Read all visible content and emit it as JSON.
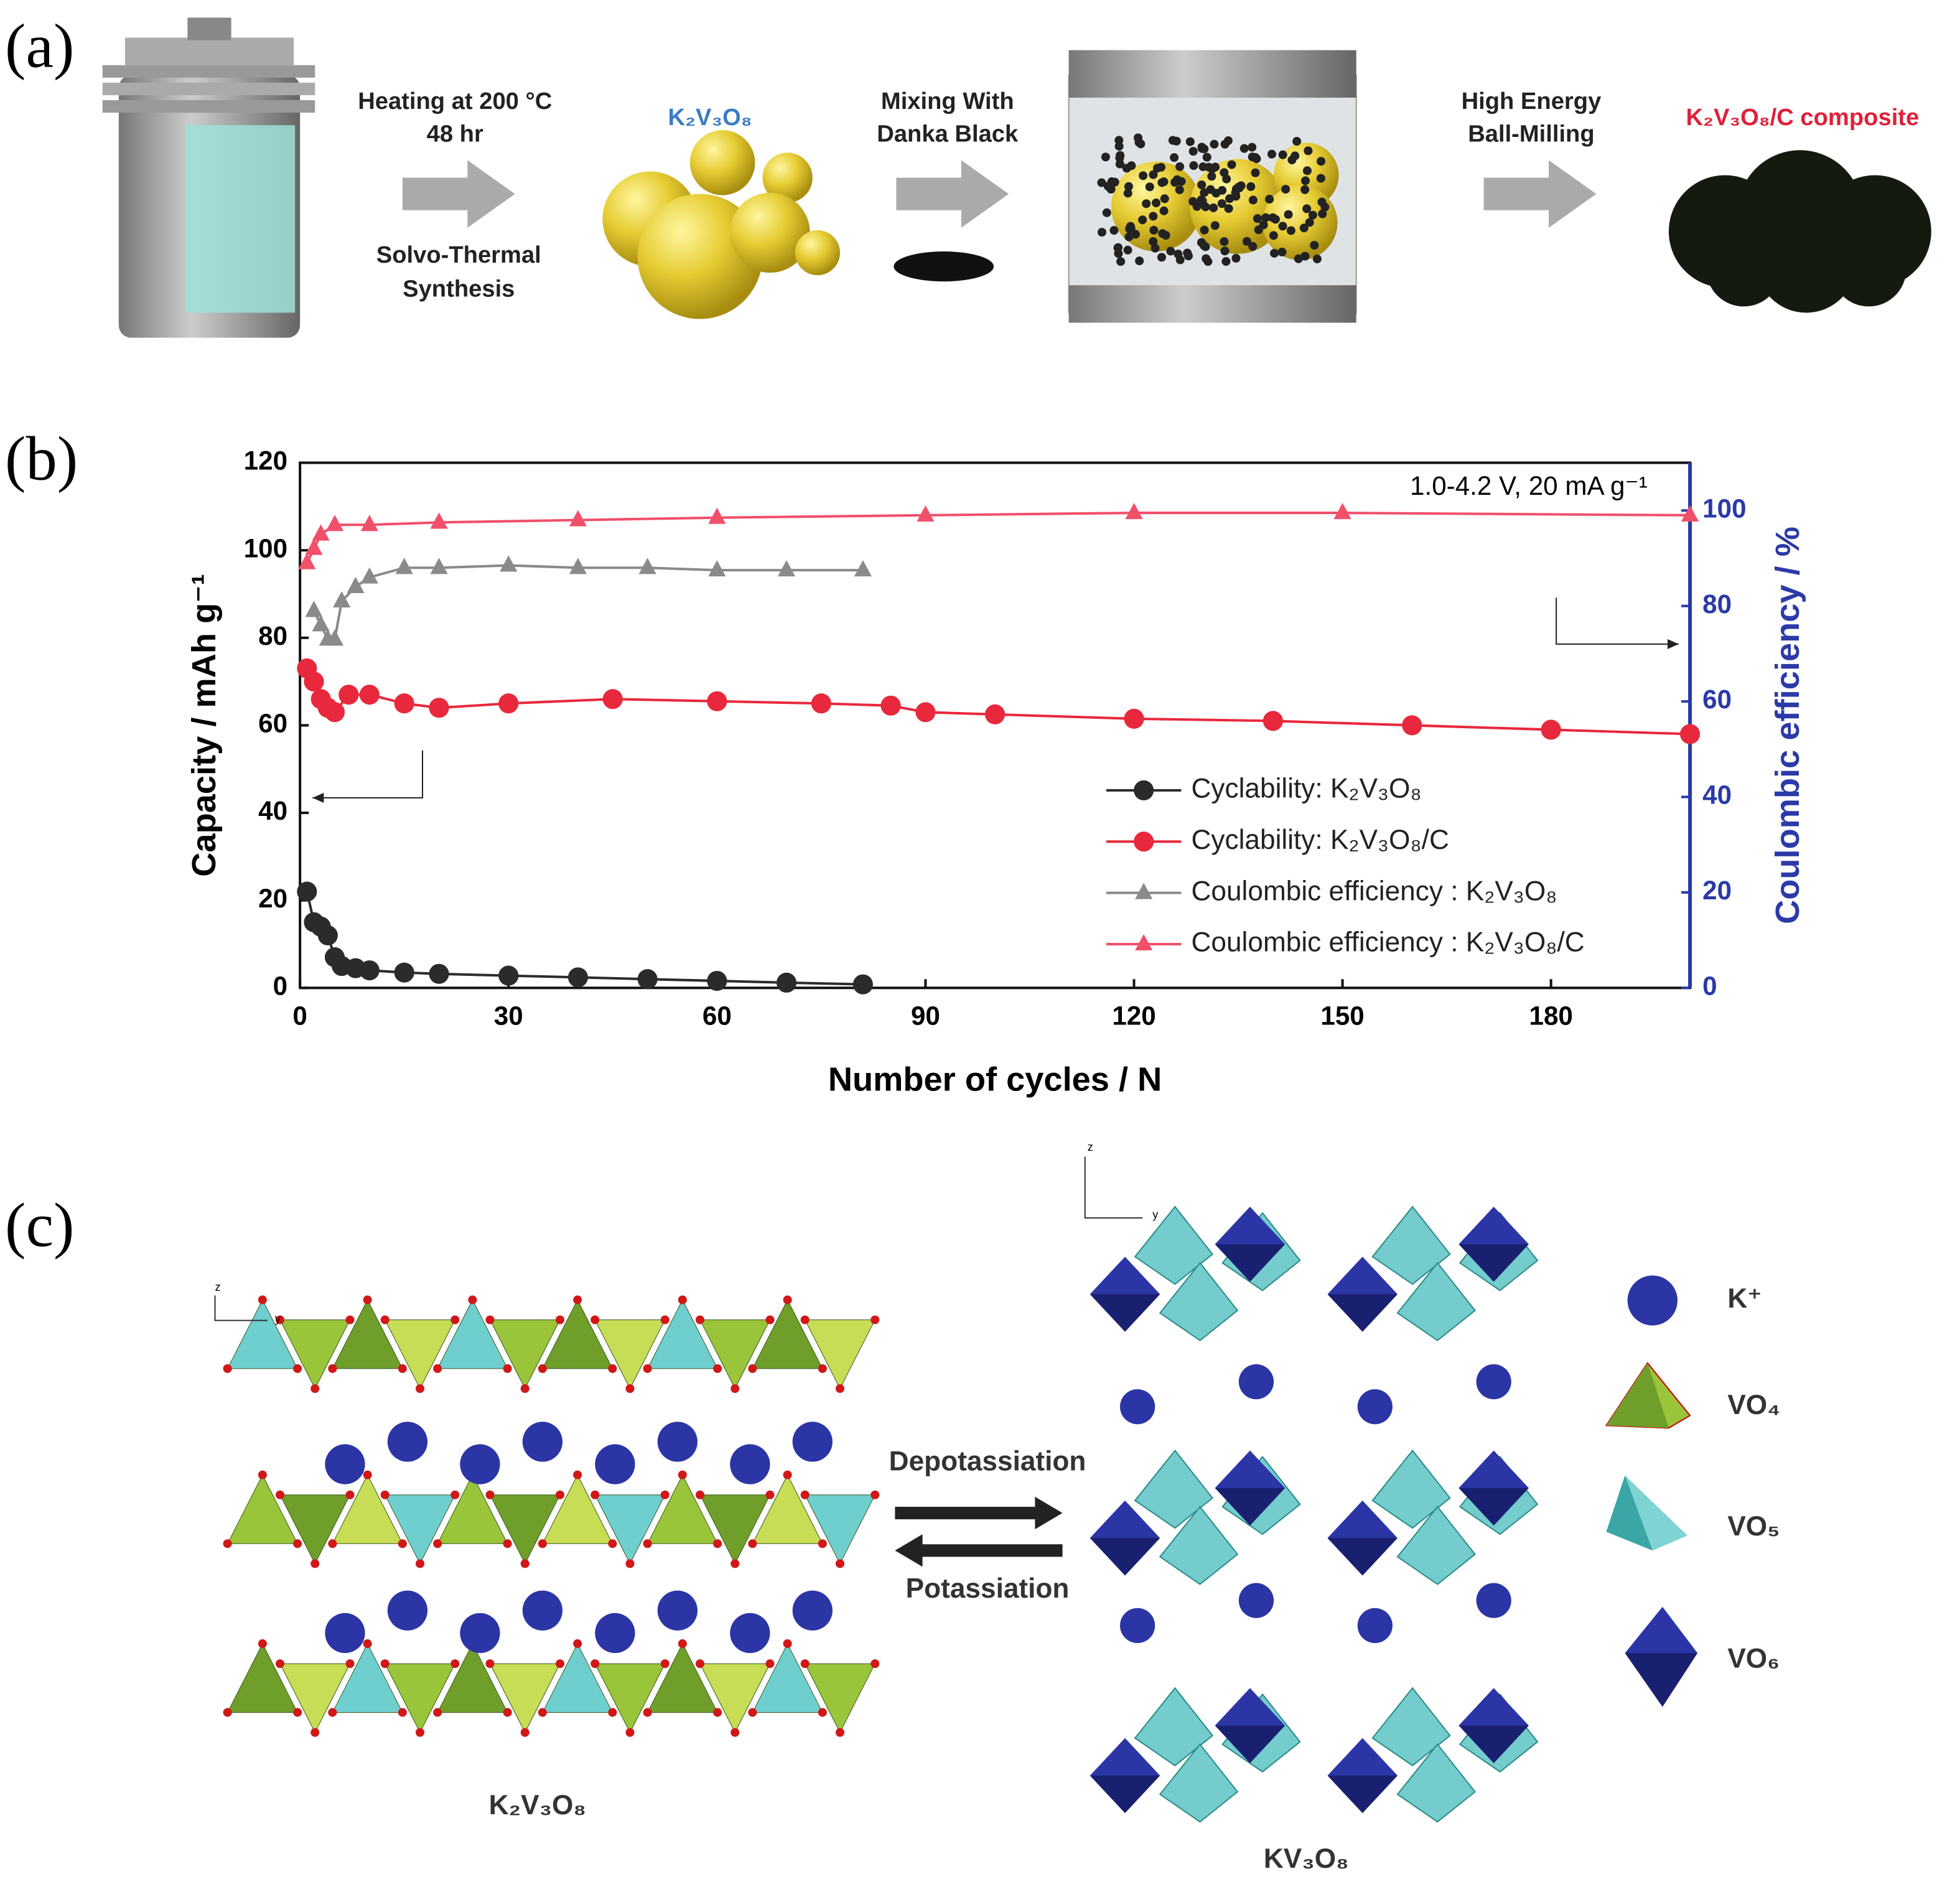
{
  "panel_a": {
    "label": "(a)",
    "step1": [
      "Heating at 200 °C",
      "48 hr"
    ],
    "step1_sub": [
      "Solvo-Thermal",
      "Synthesis"
    ],
    "product": "K₂V₃O₈",
    "step2": [
      "Mixing With",
      "Danka Black"
    ],
    "step3": [
      "High Energy",
      "Ball-Milling"
    ],
    "result": "K₂V₃O₈/C composite"
  },
  "panel_b": {
    "label": "(b)"
  },
  "chart_data": {
    "type": "line",
    "xlabel": "Number of cycles  /  N",
    "ylabel": "Capacity  /  mAh g⁻¹",
    "y2label": "Coulombic efficiency  /  %",
    "annotation": "1.0-4.2 V, 20 mA g⁻¹",
    "xlim": [
      0,
      200
    ],
    "xticks": [
      0,
      30,
      60,
      90,
      120,
      150,
      180
    ],
    "ylim": [
      0,
      120
    ],
    "yticks": [
      0,
      20,
      40,
      60,
      80,
      100,
      120
    ],
    "y2lim": [
      0,
      110
    ],
    "y2ticks": [
      0,
      20,
      40,
      60,
      80,
      100
    ],
    "y2color": "#2b3aa8",
    "legend": "lower right",
    "series": [
      {
        "name": "Cyclability: K₂V₃O₈",
        "color": "#2b2b2b",
        "marker": "circle",
        "x": [
          1,
          2,
          3,
          4,
          5,
          6,
          8,
          10,
          15,
          20,
          30,
          40,
          50,
          60,
          70,
          81
        ],
        "values": [
          22,
          15,
          14,
          12,
          7,
          5,
          4.5,
          4,
          3.5,
          3.2,
          2.8,
          2.4,
          2,
          1.6,
          1.2,
          0.8
        ]
      },
      {
        "name": "Cyclability: K₂V₃O₈/C",
        "color": "#e8283c",
        "marker": "circle",
        "x": [
          1,
          2,
          3,
          4,
          5,
          7,
          10,
          15,
          20,
          30,
          45,
          60,
          75,
          85,
          90,
          100,
          120,
          140,
          160,
          180,
          200
        ],
        "values": [
          73,
          70,
          66,
          64,
          63,
          67,
          67,
          65,
          64,
          65,
          66,
          65.5,
          65,
          64.5,
          63,
          62.5,
          61.5,
          61,
          60,
          59,
          58
        ]
      },
      {
        "name": "Coulombic efficiency : K₂V₃O₈",
        "color": "#8a8a8a",
        "marker": "triangle",
        "axis": "y2",
        "x": [
          2,
          3,
          4,
          5,
          6,
          8,
          10,
          15,
          20,
          30,
          40,
          50,
          60,
          70,
          81
        ],
        "values": [
          79,
          76,
          73,
          73,
          81,
          84,
          86,
          88,
          88,
          88.5,
          88,
          88,
          87.5,
          87.5,
          87.5
        ]
      },
      {
        "name": "Coulombic efficiency : K₂V₃O₈/C",
        "color": "#f0506a",
        "marker": "triangle",
        "axis": "y2",
        "x": [
          1,
          2,
          3,
          5,
          10,
          20,
          40,
          60,
          90,
          120,
          150,
          200
        ],
        "values": [
          89,
          92,
          95,
          97,
          97,
          97.5,
          98,
          98.5,
          99,
          99.5,
          99.5,
          99
        ]
      }
    ]
  },
  "panel_c": {
    "label": "(c)",
    "forward": "Depotassiation",
    "reverse": "Potassiation",
    "left_structure": "K₂V₃O₈",
    "right_structure": "KV₃O₈",
    "axes": [
      "z",
      "y"
    ],
    "legend": [
      "K⁺",
      "VO₄",
      "VO₅",
      "VO₆"
    ]
  }
}
